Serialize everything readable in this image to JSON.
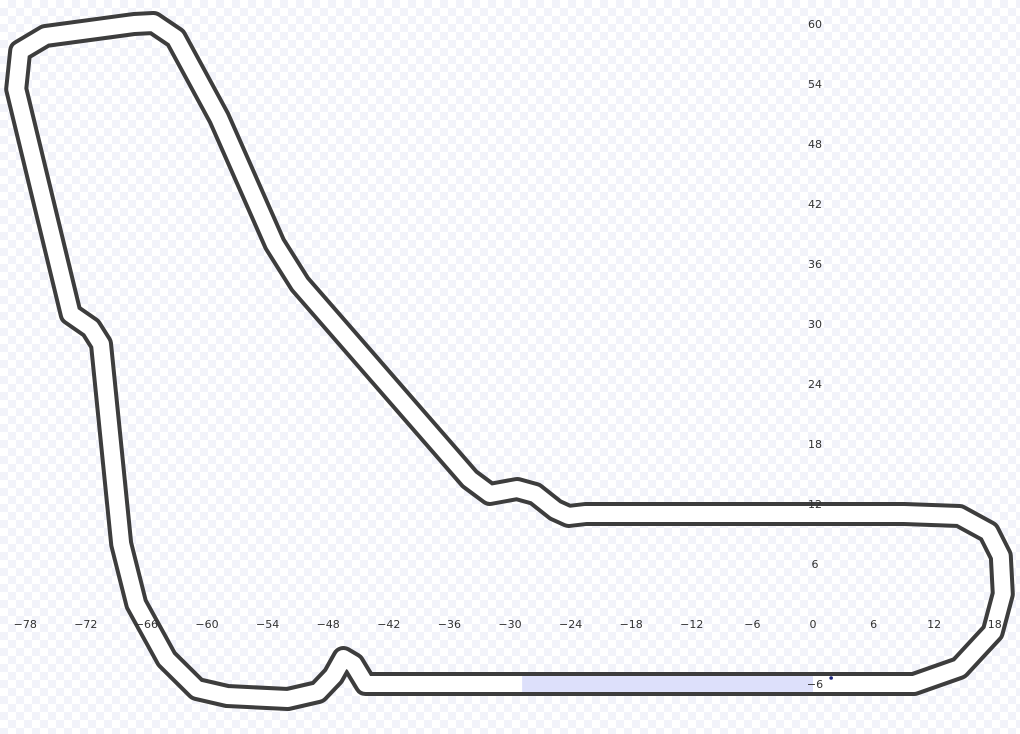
{
  "colors": {
    "track_outline": "#3d3d3d",
    "track_fill": "#ffffff",
    "highlight_segment": "#dde0fb",
    "car_marker": "#1a237e",
    "tick_text": "#333333"
  },
  "chart_data": {
    "type": "scatter",
    "title": "",
    "xlabel": "",
    "ylabel": "",
    "xlim": [
      -80.5,
      20.5
    ],
    "ylim": [
      -11,
      62.4
    ],
    "x_ticks": [
      -78,
      -72,
      -66,
      -60,
      -54,
      -48,
      -42,
      -36,
      -30,
      -24,
      -18,
      -12,
      -6,
      0,
      6,
      12,
      18
    ],
    "y_ticks": [
      60,
      54,
      48,
      42,
      36,
      30,
      24,
      18,
      12,
      6,
      -6
    ],
    "grid": false,
    "track_centerline": [
      [
        -12,
        -6
      ],
      [
        10,
        -6
      ],
      [
        14.5,
        -4.4
      ],
      [
        17.8,
        -0.8
      ],
      [
        18.8,
        3
      ],
      [
        18.6,
        6.8
      ],
      [
        17.4,
        9.2
      ],
      [
        14.5,
        10.8
      ],
      [
        9,
        11
      ],
      [
        -22.5,
        11
      ],
      [
        -24.2,
        10.8
      ],
      [
        -25.5,
        11.4
      ],
      [
        -27.5,
        13
      ],
      [
        -29.3,
        13.5
      ],
      [
        -32,
        13
      ],
      [
        -34,
        14.5
      ],
      [
        -50.8,
        34
      ],
      [
        -53.3,
        38
      ],
      [
        -58.8,
        50.6
      ],
      [
        -63.1,
        58.6
      ],
      [
        -65.3,
        60.1
      ],
      [
        -67.2,
        60
      ],
      [
        -76,
        58.8
      ],
      [
        -78.5,
        57.3
      ],
      [
        -78.9,
        53.5
      ],
      [
        -73.5,
        31
      ],
      [
        -71.5,
        29.6
      ],
      [
        -70.5,
        28
      ],
      [
        -68.5,
        8
      ],
      [
        -67,
        2
      ],
      [
        -64,
        -3.5
      ],
      [
        -61,
        -6.5
      ],
      [
        -58,
        -7.2
      ],
      [
        -52,
        -7.5
      ],
      [
        -49,
        -6.8
      ],
      [
        -47.5,
        -5.2
      ],
      [
        -46.5,
        -3.4
      ],
      [
        -45.5,
        -4
      ],
      [
        -44.3,
        -6
      ],
      [
        -30,
        -6
      ],
      [
        -12,
        -6
      ]
    ],
    "highlighted_segment": {
      "x": [
        -28.8,
        0
      ],
      "y": -6
    },
    "points": [
      {
        "x": 1.8,
        "y": -5.4
      }
    ]
  }
}
